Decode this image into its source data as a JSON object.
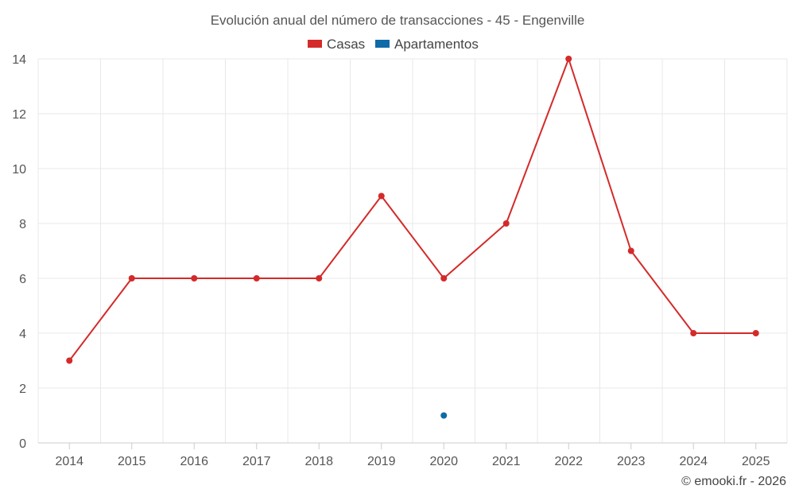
{
  "chart_data": {
    "type": "line",
    "title": "Evolución anual del número de transacciones - 45 - Engenville",
    "categories": [
      "2014",
      "2015",
      "2016",
      "2017",
      "2018",
      "2019",
      "2020",
      "2021",
      "2022",
      "2023",
      "2024",
      "2025"
    ],
    "series": [
      {
        "name": "Casas",
        "color": "#d42a2a",
        "values": [
          3,
          6,
          6,
          6,
          6,
          9,
          6,
          8,
          14,
          7,
          4,
          4
        ]
      },
      {
        "name": "Apartamentos",
        "color": "#0f6aa8",
        "values": [
          null,
          null,
          null,
          null,
          null,
          null,
          1,
          null,
          null,
          null,
          null,
          null
        ]
      }
    ],
    "yticks": [
      "0",
      "2",
      "4",
      "6",
      "8",
      "10",
      "12",
      "14"
    ],
    "ylim": [
      0,
      14
    ],
    "grid": true,
    "legend": "top-center"
  },
  "credit": "© emooki.fr - 2026"
}
